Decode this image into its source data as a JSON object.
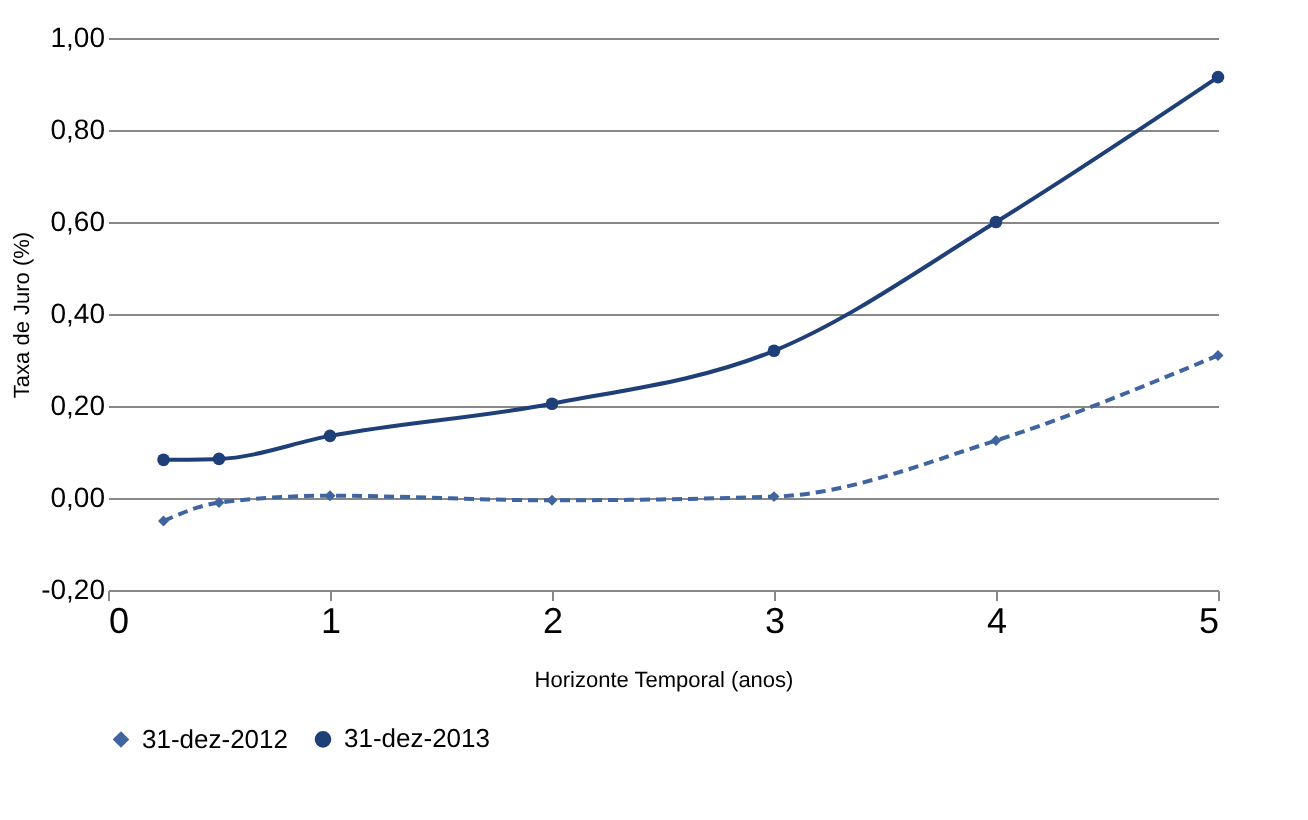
{
  "chart_data": {
    "type": "line",
    "xlabel": "Horizonte Temporal (anos)",
    "ylabel": "Taxa de Juro (%)",
    "x": [
      0.25,
      0.5,
      1,
      2,
      3,
      4,
      5
    ],
    "series": [
      {
        "name": "31-dez-2012",
        "color": "#3f64a0",
        "values": [
          -0.05,
          -0.01,
          0.005,
          -0.005,
          0.003,
          0.125,
          0.31
        ],
        "marker": "diamond",
        "line_style": "dashed"
      },
      {
        "name": "31-dez-2013",
        "color": "#1f3f78",
        "values": [
          0.083,
          0.085,
          0.135,
          0.205,
          0.32,
          0.6,
          0.915
        ],
        "marker": "circle",
        "line_style": "solid"
      }
    ],
    "xlim": [
      0,
      5
    ],
    "xticks": [
      0,
      1,
      2,
      3,
      4,
      5
    ],
    "ylim": [
      -0.2,
      1.0
    ],
    "yticks": [
      {
        "value": -0.2,
        "label": "-0,20"
      },
      {
        "value": 0,
        "label": "0,00"
      },
      {
        "value": 0.2,
        "label": "0,20"
      },
      {
        "value": 0.4,
        "label": "0,40"
      },
      {
        "value": 0.6,
        "label": "0,60"
      },
      {
        "value": 0.8,
        "label": "0,80"
      },
      {
        "value": 1.0,
        "label": "1,00"
      }
    ],
    "grid": "y",
    "legend": "bottom"
  }
}
